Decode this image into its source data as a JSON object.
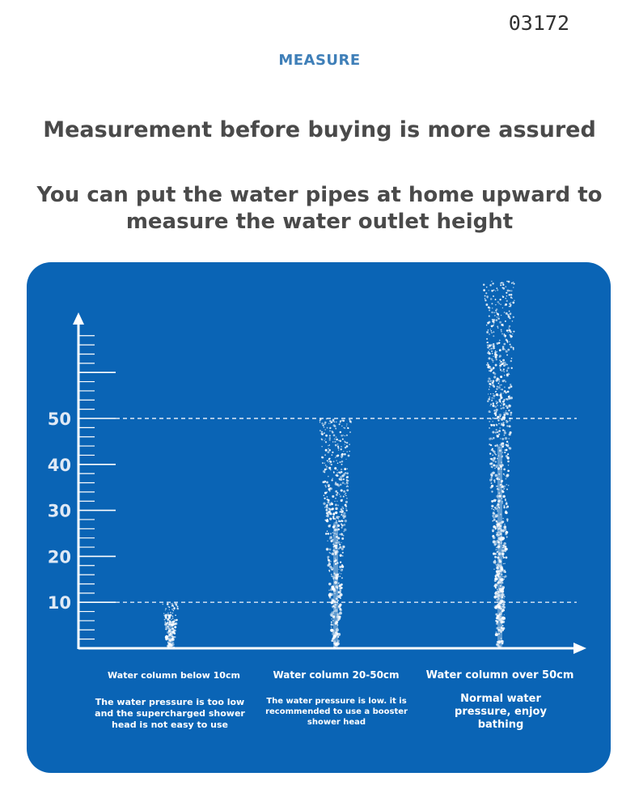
{
  "code": "03172",
  "section_label": "MEASURE",
  "headline": "Measurement before buying is more assured",
  "subheadline": "You can put the water pipes at home upward to measure the water outlet height",
  "colors": {
    "panel": "#0a64b5",
    "accent": "#3f7fb8",
    "text": "#4a4a4a"
  },
  "scale": {
    "labels": [
      "50",
      "40",
      "30",
      "20",
      "10"
    ],
    "values": [
      50,
      40,
      30,
      20,
      10
    ],
    "dashed_levels": [
      50,
      10
    ]
  },
  "columns": [
    {
      "title": "Water column below 10cm",
      "desc": "The water pressure is too low and the supercharged shower head is not easy to use",
      "height": 10
    },
    {
      "title": "Water column 20-50cm",
      "desc": "The water pressure is low. it is recommended to use a booster shower head",
      "height": 50
    },
    {
      "title": "Water column over 50cm",
      "desc": "Normal water pressure, enjoy bathing",
      "height": 80
    }
  ]
}
